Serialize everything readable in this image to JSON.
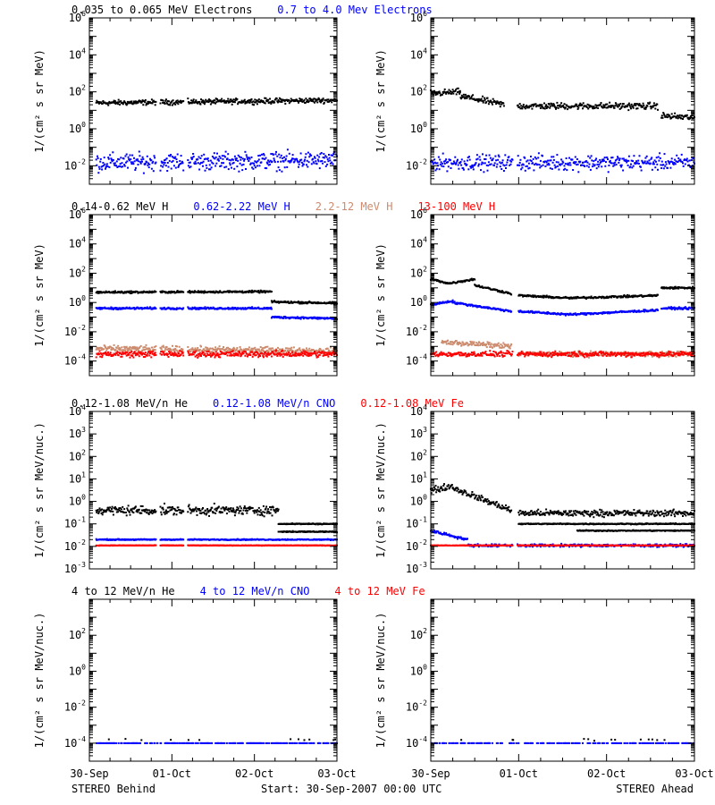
{
  "footer": {
    "left": "STEREO Behind",
    "center": "Start: 30-Sep-2007 00:00 UTC",
    "right": "STEREO Ahead"
  },
  "chart_data": [
    {
      "type": "scatter",
      "row": "electrons",
      "spacecraft": "STEREO Behind",
      "title_parts": [
        {
          "text": "0.035 to 0.065 MeV Electrons",
          "color": "#000000"
        },
        {
          "text": "0.7 to 4.0 Mev Electrons",
          "color": "#0000ff"
        }
      ],
      "ylabel": "1/(cm² s sr MeV)",
      "yscale": "log",
      "ylim_exp": [
        -3,
        6
      ],
      "ytick_exps": [
        -2,
        0,
        2,
        4,
        6
      ],
      "xlim_hours": [
        0,
        72
      ],
      "xtick_labels": [
        "30-Sep",
        "01-Oct",
        "02-Oct",
        "03-Oct"
      ],
      "gaps_hours": [
        [
          19.5,
          20.5
        ],
        [
          27.5,
          28.5
        ]
      ],
      "series": [
        {
          "color": "#000000",
          "segments": [
            {
              "x": [
                2,
                72
              ],
              "y": [
                25,
                35
              ]
            }
          ],
          "scatter": 0.12
        },
        {
          "color": "#0000ff",
          "segments": [
            {
              "x": [
                2,
                72
              ],
              "y": [
                0.015,
                0.02
              ]
            }
          ],
          "scatter": 0.4
        }
      ]
    },
    {
      "type": "scatter",
      "row": "electrons",
      "spacecraft": "STEREO Ahead",
      "title_parts": [],
      "ylabel": "1/(cm² s sr MeV)",
      "yscale": "log",
      "ylim_exp": [
        -3,
        6
      ],
      "ytick_exps": [
        -2,
        0,
        2,
        4,
        6
      ],
      "xlim_hours": [
        0,
        72
      ],
      "xtick_labels": [
        "30-Sep",
        "01-Oct",
        "02-Oct",
        "03-Oct"
      ],
      "gaps_hours": [
        [
          22.5,
          23.5
        ]
      ],
      "series": [
        {
          "color": "#000000",
          "segments": [
            {
              "x": [
                0,
                8
              ],
              "y": [
                80,
                100
              ]
            },
            {
              "x": [
                8,
                20
              ],
              "y": [
                60,
                20
              ]
            },
            {
              "x": [
                23,
                62
              ],
              "y": [
                17,
                17
              ]
            },
            {
              "x": [
                63,
                72
              ],
              "y": [
                5,
                4
              ]
            }
          ],
          "scatter": 0.15
        },
        {
          "color": "#0000ff",
          "segments": [
            {
              "x": [
                0,
                72
              ],
              "y": [
                0.015,
                0.015
              ]
            }
          ],
          "scatter": 0.35
        }
      ]
    },
    {
      "type": "scatter",
      "row": "protons",
      "spacecraft": "STEREO Behind",
      "title_parts": [
        {
          "text": "0.14-0.62 MeV H",
          "color": "#000000"
        },
        {
          "text": "0.62-2.22 MeV H",
          "color": "#0000ff"
        },
        {
          "text": "2.2-12 MeV H",
          "color": "#cd8b6e"
        },
        {
          "text": "13-100 MeV H",
          "color": "#ff0000"
        }
      ],
      "ylabel": "1/(cm² s sr MeV)",
      "yscale": "log",
      "ylim_exp": [
        -5,
        6
      ],
      "ytick_exps": [
        -4,
        -2,
        0,
        2,
        4,
        6
      ],
      "xlim_hours": [
        0,
        72
      ],
      "xtick_labels": [
        "30-Sep",
        "01-Oct",
        "02-Oct",
        "03-Oct"
      ],
      "gaps_hours": [
        [
          19.5,
          20.5
        ],
        [
          27.5,
          28.5
        ]
      ],
      "series": [
        {
          "color": "#000000",
          "segments": [
            {
              "x": [
                2,
                53
              ],
              "y": [
                5,
                5.5
              ]
            },
            {
              "x": [
                53,
                72
              ],
              "y": [
                1.1,
                0.9
              ]
            }
          ],
          "scatter": 0.06
        },
        {
          "color": "#0000ff",
          "segments": [
            {
              "x": [
                2,
                53
              ],
              "y": [
                0.4,
                0.4
              ]
            },
            {
              "x": [
                53,
                72
              ],
              "y": [
                0.1,
                0.08
              ]
            }
          ],
          "scatter": 0.06
        },
        {
          "color": "#cd8b6e",
          "segments": [
            {
              "x": [
                2,
                72
              ],
              "y": [
                0.0007,
                0.0005
              ]
            }
          ],
          "scatter": 0.18
        },
        {
          "color": "#ff0000",
          "segments": [
            {
              "x": [
                2,
                72
              ],
              "y": [
                0.0003,
                0.0003
              ]
            }
          ],
          "scatter": 0.18
        }
      ]
    },
    {
      "type": "scatter",
      "row": "protons",
      "spacecraft": "STEREO Ahead",
      "title_parts": [],
      "ylabel": "1/(cm² s sr MeV)",
      "yscale": "log",
      "ylim_exp": [
        -5,
        6
      ],
      "ytick_exps": [
        -4,
        -2,
        0,
        2,
        4,
        6
      ],
      "xlim_hours": [
        0,
        72
      ],
      "xtick_labels": [
        "30-Sep",
        "01-Oct",
        "02-Oct",
        "03-Oct"
      ],
      "gaps_hours": [
        [
          22.5,
          23.5
        ]
      ],
      "series": [
        {
          "color": "#000000",
          "segments": [
            {
              "x": [
                0,
                5
              ],
              "y": [
                40,
                20
              ]
            },
            {
              "x": [
                5,
                12
              ],
              "y": [
                20,
                40
              ]
            },
            {
              "x": [
                12,
                22
              ],
              "y": [
                15,
                4
              ]
            },
            {
              "x": [
                24,
                38
              ],
              "y": [
                3,
                2
              ]
            },
            {
              "x": [
                38,
                62
              ],
              "y": [
                2,
                3
              ]
            },
            {
              "x": [
                63,
                72
              ],
              "y": [
                10,
                10
              ]
            }
          ],
          "scatter": 0.06
        },
        {
          "color": "#0000ff",
          "segments": [
            {
              "x": [
                0,
                6
              ],
              "y": [
                0.7,
                1.3
              ]
            },
            {
              "x": [
                6,
                22
              ],
              "y": [
                1,
                0.25
              ]
            },
            {
              "x": [
                24,
                38
              ],
              "y": [
                0.25,
                0.15
              ]
            },
            {
              "x": [
                38,
                62
              ],
              "y": [
                0.15,
                0.3
              ]
            },
            {
              "x": [
                63,
                72
              ],
              "y": [
                0.4,
                0.4
              ]
            }
          ],
          "scatter": 0.06
        },
        {
          "color": "#cd8b6e",
          "segments": [
            {
              "x": [
                3,
                22
              ],
              "y": [
                0.002,
                0.001
              ]
            },
            {
              "x": [
                24,
                72
              ],
              "y": [
                0.0003,
                0.0003
              ]
            }
          ],
          "scatter": 0.15
        },
        {
          "color": "#ff0000",
          "segments": [
            {
              "x": [
                0,
                72
              ],
              "y": [
                0.0003,
                0.0003
              ]
            }
          ],
          "scatter": 0.15
        }
      ]
    },
    {
      "type": "scatter",
      "row": "heavy",
      "spacecraft": "STEREO Behind",
      "title_parts": [
        {
          "text": "0.12-1.08 MeV/n He",
          "color": "#000000"
        },
        {
          "text": "0.12-1.08 MeV/n CNO",
          "color": "#0000ff"
        },
        {
          "text": "0.12-1.08 MeV Fe",
          "color": "#ff0000"
        }
      ],
      "ylabel": "1/(cm² s sr MeV/nuc.)",
      "yscale": "log",
      "ylim_exp": [
        -3,
        4
      ],
      "ytick_exps": [
        -3,
        -2,
        -1,
        0,
        1,
        2,
        3,
        4
      ],
      "xlim_hours": [
        0,
        72
      ],
      "xtick_labels": [
        "30-Sep",
        "01-Oct",
        "02-Oct",
        "03-Oct"
      ],
      "gaps_hours": [
        [
          19.5,
          20.5
        ],
        [
          27.5,
          28.5
        ]
      ],
      "series": [
        {
          "color": "#000000",
          "segments": [
            {
              "x": [
                2,
                55
              ],
              "y": [
                0.4,
                0.4
              ]
            }
          ],
          "scatter": 0.18
        },
        {
          "color": "#000000",
          "segments": [
            {
              "x": [
                55,
                72
              ],
              "y": [
                0.045,
                0.045
              ]
            },
            {
              "x": [
                55,
                72
              ],
              "y": [
                0.1,
                0.1
              ]
            }
          ],
          "scatter": 0.02
        },
        {
          "color": "#0000ff",
          "segments": [
            {
              "x": [
                2,
                72
              ],
              "y": [
                0.02,
                0.02
              ]
            }
          ],
          "scatter": 0.02
        },
        {
          "color": "#ff0000",
          "segments": [
            {
              "x": [
                2,
                72
              ],
              "y": [
                0.011,
                0.011
              ]
            }
          ],
          "scatter": 0.01
        }
      ]
    },
    {
      "type": "scatter",
      "row": "heavy",
      "spacecraft": "STEREO Ahead",
      "title_parts": [],
      "ylabel": "1/(cm² s sr MeV/nuc.)",
      "yscale": "log",
      "ylim_exp": [
        -3,
        4
      ],
      "ytick_exps": [
        -3,
        -2,
        -1,
        0,
        1,
        2,
        3,
        4
      ],
      "xlim_hours": [
        0,
        72
      ],
      "xtick_labels": [
        "30-Sep",
        "01-Oct",
        "02-Oct",
        "03-Oct"
      ],
      "gaps_hours": [
        [
          22.5,
          23.5
        ]
      ],
      "series": [
        {
          "color": "#000000",
          "segments": [
            {
              "x": [
                0,
                6
              ],
              "y": [
                3,
                5
              ]
            },
            {
              "x": [
                6,
                22
              ],
              "y": [
                4,
                0.4
              ]
            },
            {
              "x": [
                24,
                72
              ],
              "y": [
                0.3,
                0.3
              ]
            }
          ],
          "scatter": 0.12
        },
        {
          "color": "#000000",
          "segments": [
            {
              "x": [
                24,
                72
              ],
              "y": [
                0.1,
                0.1
              ]
            },
            {
              "x": [
                40,
                72
              ],
              "y": [
                0.05,
                0.05
              ]
            }
          ],
          "scatter": 0.02
        },
        {
          "color": "#0000ff",
          "segments": [
            {
              "x": [
                0,
                10
              ],
              "y": [
                0.05,
                0.02
              ]
            },
            {
              "x": [
                10,
                72
              ],
              "y": [
                0.011,
                0.011
              ]
            }
          ],
          "scatter": 0.05
        },
        {
          "color": "#ff0000",
          "segments": [
            {
              "x": [
                0,
                72
              ],
              "y": [
                0.011,
                0.011
              ]
            }
          ],
          "scatter": 0.01
        }
      ]
    },
    {
      "type": "scatter",
      "row": "high-energy",
      "spacecraft": "STEREO Behind",
      "title_parts": [
        {
          "text": "4 to 12 MeV/n He",
          "color": "#000000"
        },
        {
          "text": "4 to 12 MeV/n CNO",
          "color": "#0000ff"
        },
        {
          "text": "4 to 12 MeV Fe",
          "color": "#ff0000"
        }
      ],
      "ylabel": "1/(cm² s sr MeV/nuc.)",
      "yscale": "log",
      "ylim_exp": [
        -5,
        4
      ],
      "ytick_exps": [
        -4,
        -2,
        0,
        2
      ],
      "xlim_hours": [
        0,
        72
      ],
      "xtick_labels": [
        "30-Sep",
        "01-Oct",
        "02-Oct",
        "03-Oct"
      ],
      "gaps_hours": [],
      "series": [
        {
          "color": "#0000ff",
          "segments": [
            {
              "x": [
                2,
                72
              ],
              "y": [
                0.0001,
                0.0001
              ]
            }
          ],
          "scatter": 0.0,
          "sparse": 0.45
        },
        {
          "color": "#000000",
          "segments": [
            {
              "x": [
                2,
                72
              ],
              "y": [
                0.00016,
                0.00016
              ]
            }
          ],
          "scatter": 0.05,
          "sparse": 0.03
        }
      ]
    },
    {
      "type": "scatter",
      "row": "high-energy",
      "spacecraft": "STEREO Ahead",
      "title_parts": [],
      "ylabel": "1/(cm² s sr MeV/nuc.)",
      "yscale": "log",
      "ylim_exp": [
        -5,
        4
      ],
      "ytick_exps": [
        -4,
        -2,
        0,
        2
      ],
      "xlim_hours": [
        0,
        72
      ],
      "xtick_labels": [
        "30-Sep",
        "01-Oct",
        "02-Oct",
        "03-Oct"
      ],
      "gaps_hours": [],
      "series": [
        {
          "color": "#0000ff",
          "segments": [
            {
              "x": [
                0,
                72
              ],
              "y": [
                0.0001,
                0.0001
              ]
            }
          ],
          "scatter": 0.0,
          "sparse": 0.4
        },
        {
          "color": "#000000",
          "segments": [
            {
              "x": [
                0,
                72
              ],
              "y": [
                0.00016,
                0.00016
              ]
            }
          ],
          "scatter": 0.05,
          "sparse": 0.03
        }
      ]
    }
  ]
}
